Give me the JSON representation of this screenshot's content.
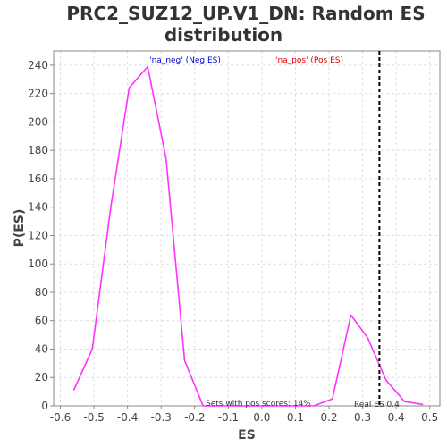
{
  "chart_data": {
    "type": "line",
    "title_lines": [
      "PRC2_SUZ12_UP.V1_DN: Random ES",
      "distribution"
    ],
    "xlabel": "ES",
    "ylabel": "P(ES)",
    "xlim": [
      -0.62,
      0.53
    ],
    "ylim": [
      0,
      250
    ],
    "x_ticks": [
      -0.6,
      -0.5,
      -0.4,
      -0.3,
      -0.2,
      -0.1,
      0.0,
      0.1,
      0.2,
      0.3,
      0.4,
      0.5
    ],
    "x_tick_labels": [
      "-0.6",
      "-0.5",
      "-0.4",
      "-0.3",
      "-0.2",
      "-0.1",
      "0.0",
      "0.1",
      "0.2",
      "0.3",
      "0.4",
      "0.5"
    ],
    "y_ticks": [
      0,
      20,
      40,
      60,
      80,
      100,
      120,
      140,
      160,
      180,
      200,
      220,
      240
    ],
    "y_tick_labels": [
      "0",
      "20",
      "40",
      "60",
      "80",
      "100",
      "120",
      "140",
      "160",
      "180",
      "200",
      "220",
      "240"
    ],
    "grid": true,
    "series": [
      {
        "color": "#ff33ff",
        "x": [
          -0.56,
          -0.505,
          -0.45,
          -0.395,
          -0.34,
          -0.285,
          -0.23,
          -0.175,
          0.155,
          0.21,
          0.265,
          0.315,
          0.37,
          0.425,
          0.48
        ],
        "y": [
          11,
          40,
          140,
          224,
          239,
          174,
          32,
          0,
          0,
          5,
          64,
          48,
          18,
          3,
          1
        ]
      }
    ],
    "reference_line": {
      "x": 0.35,
      "label": "Real ES 0.4",
      "color": "#000000",
      "style": "dashed"
    },
    "annotations": {
      "neg_label": "'na_neg' (Neg ES)",
      "neg_color": "#0000dd",
      "pos_label": "'na_pos' (Pos ES)",
      "pos_color": "#dd0000",
      "pos_scores_text": "Sets with pos scores: 14%"
    }
  }
}
